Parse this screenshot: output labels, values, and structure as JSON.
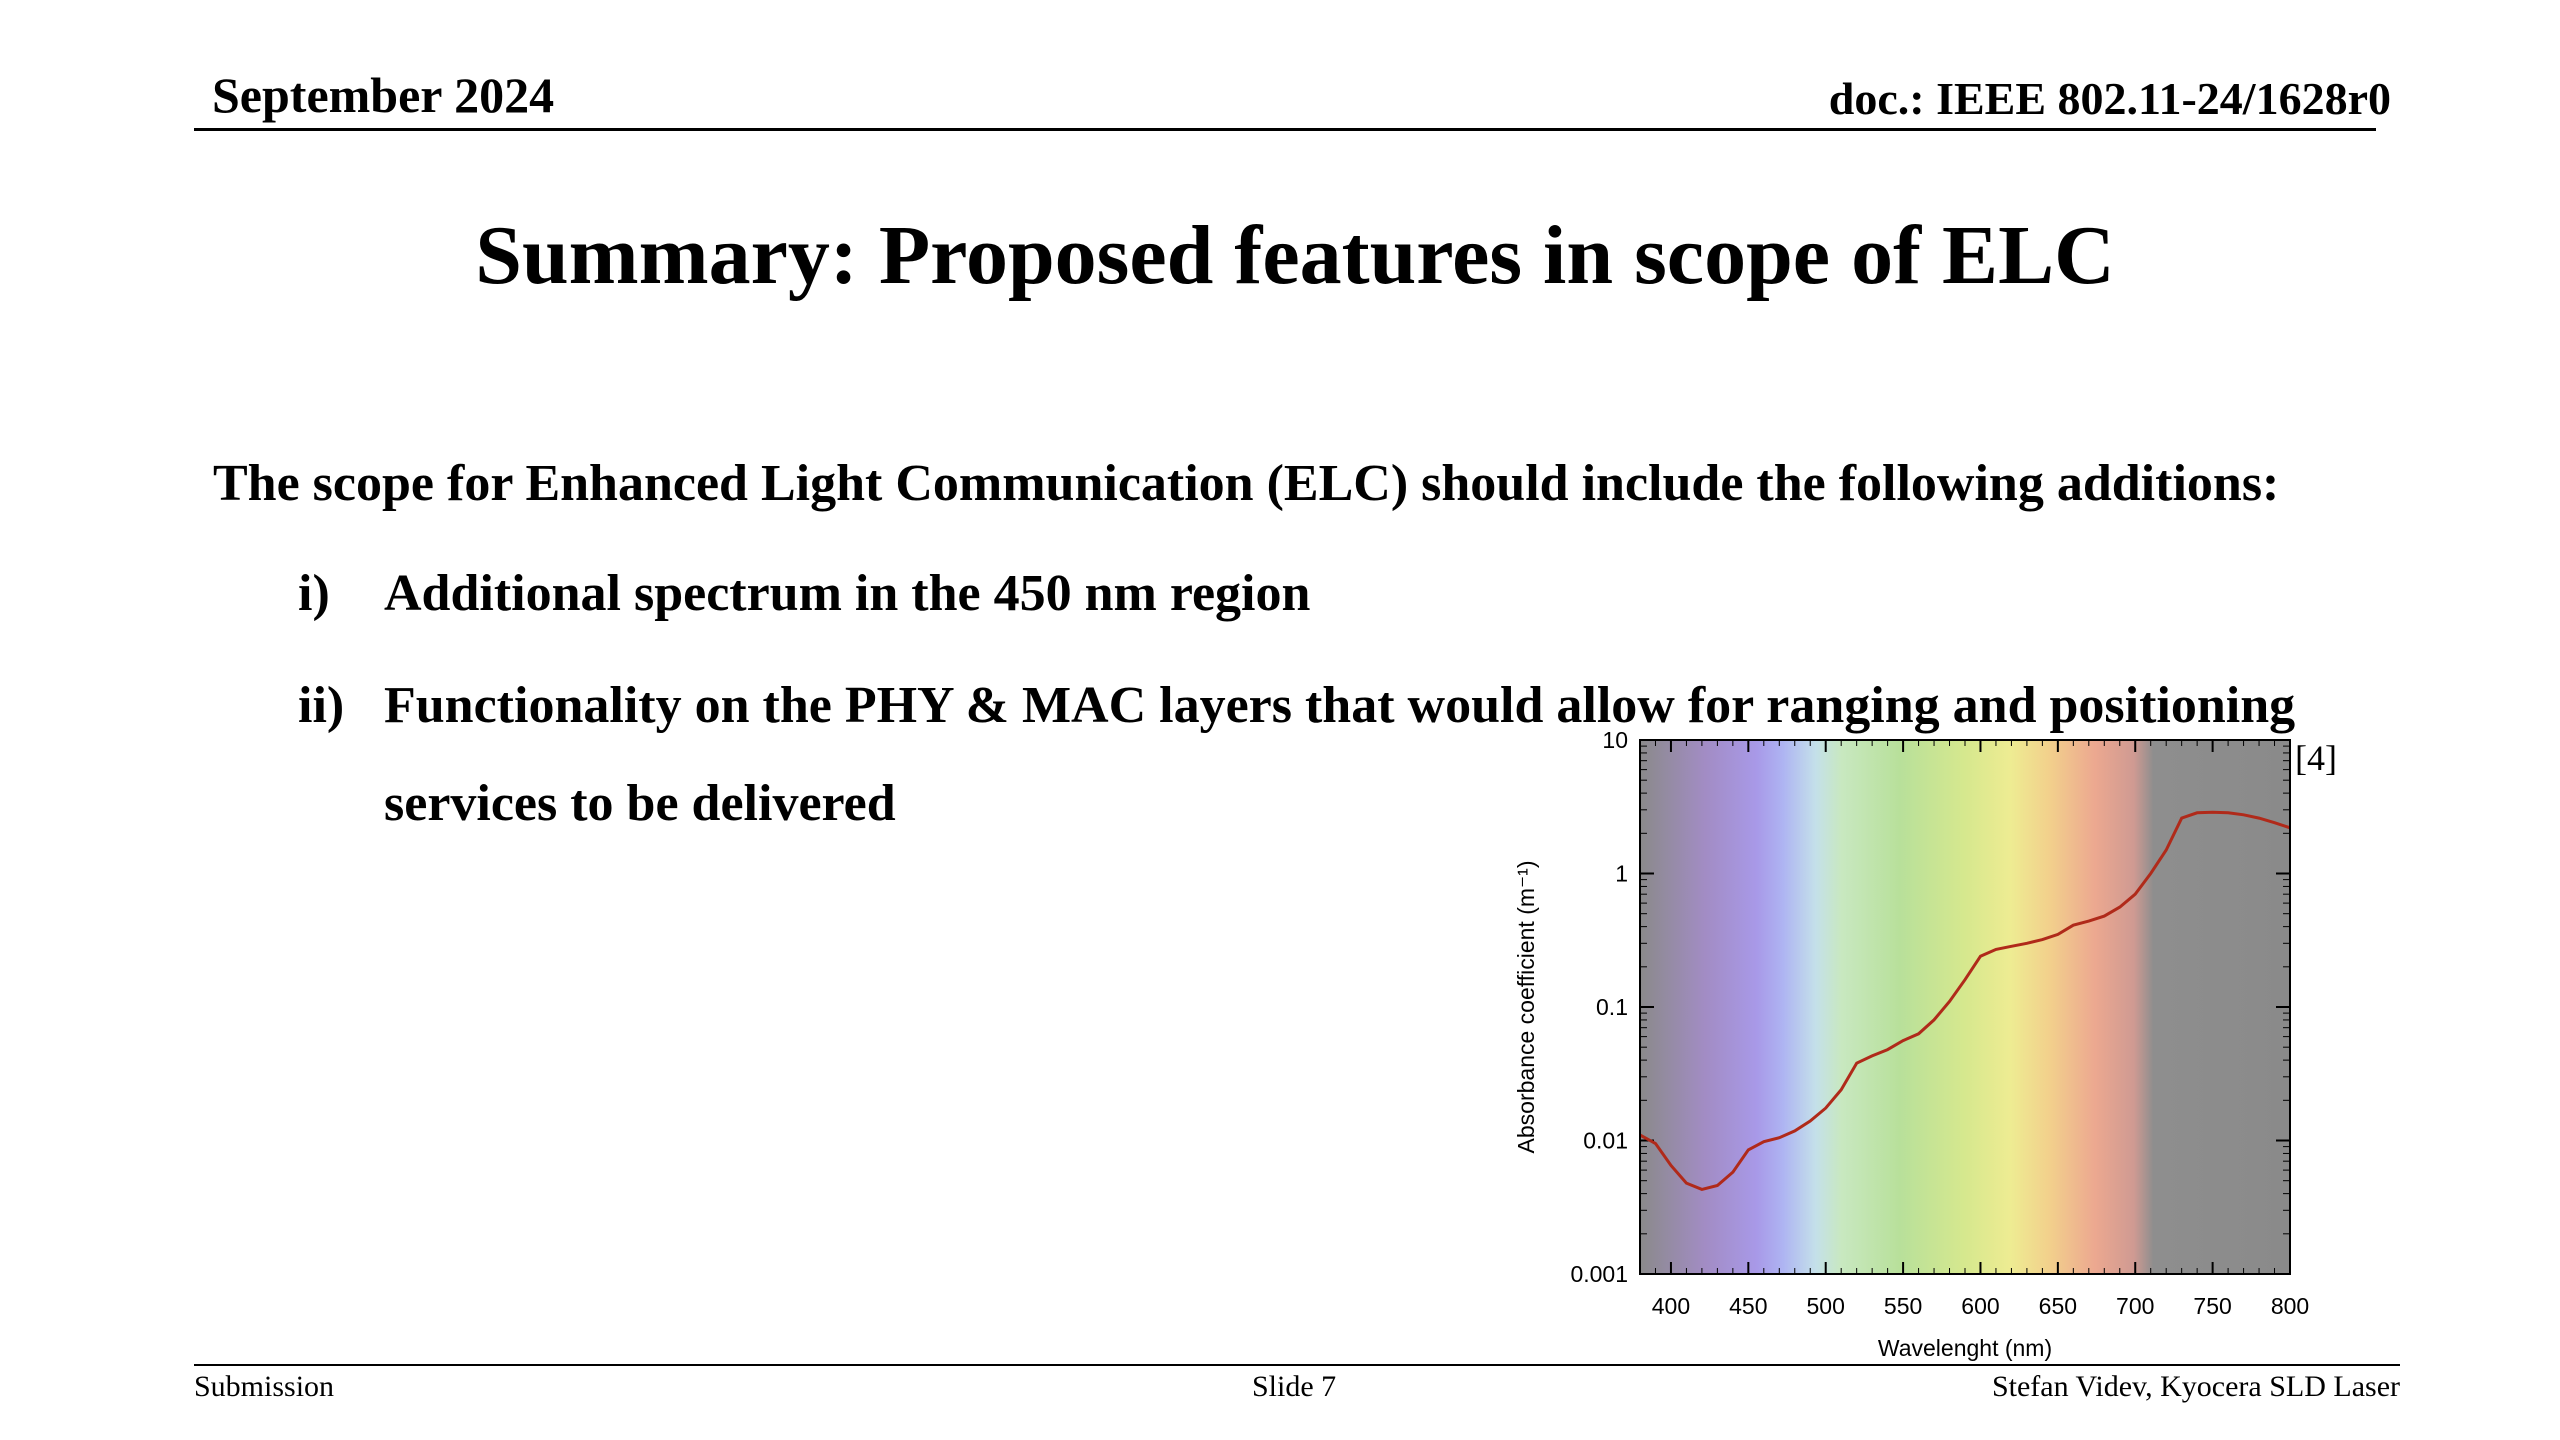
{
  "header": {
    "date": "September 2024",
    "doc": "doc.: IEEE 802.11-24/1628r0"
  },
  "title": "Summary: Proposed features in scope of ELC",
  "body": {
    "intro": "The scope for Enhanced Light Communication (ELC) should include the following additions:",
    "items": [
      {
        "num": "i)",
        "text": "Additional spectrum in the 450 nm region"
      },
      {
        "num": "ii)",
        "text_line1": "Functionality on the PHY & MAC layers that would allow for ranging and positioning",
        "text_line2": "services to be delivered"
      }
    ]
  },
  "figure": {
    "reference": "[4]"
  },
  "footer": {
    "left": "Submission",
    "center": "Slide 7",
    "right": "Stefan Videv, Kyocera SLD Laser"
  },
  "chart_data": {
    "type": "line",
    "xlabel": "Wavelenght (nm)",
    "ylabel": "Absorbance coefficient (m⁻¹)",
    "xlim": [
      380,
      800
    ],
    "ylim": [
      0.001,
      10
    ],
    "yscale": "log",
    "x_ticks": [
      400,
      450,
      500,
      550,
      600,
      650,
      700,
      750,
      800
    ],
    "y_ticks": [
      0.001,
      0.01,
      0.1,
      1,
      10
    ],
    "y_tick_labels": [
      "0.001",
      "0.01",
      "0.1",
      "1",
      "10"
    ],
    "background": "visible spectrum color gradient (violet to red, grey beyond ~710 nm)",
    "line_color": "#b02a1a",
    "series": [
      {
        "x": [
          380,
          390,
          400,
          410,
          420,
          430,
          440,
          450,
          460,
          470,
          480,
          490,
          500,
          510,
          520,
          530,
          540,
          550,
          560,
          570,
          580,
          590,
          600,
          610,
          620,
          630,
          640,
          650,
          660,
          670,
          680,
          690,
          700,
          710,
          720,
          730,
          740,
          750,
          760,
          770,
          780,
          790,
          800
        ],
        "y": [
          0.011,
          0.0095,
          0.0065,
          0.0048,
          0.0043,
          0.0046,
          0.0058,
          0.0085,
          0.0098,
          0.0105,
          0.0118,
          0.014,
          0.0175,
          0.024,
          0.038,
          0.043,
          0.048,
          0.056,
          0.063,
          0.08,
          0.11,
          0.16,
          0.24,
          0.27,
          0.285,
          0.3,
          0.32,
          0.35,
          0.41,
          0.44,
          0.48,
          0.56,
          0.7,
          1.0,
          1.5,
          2.6,
          2.85,
          2.88,
          2.85,
          2.75,
          2.6,
          2.4,
          2.2
        ]
      }
    ]
  }
}
